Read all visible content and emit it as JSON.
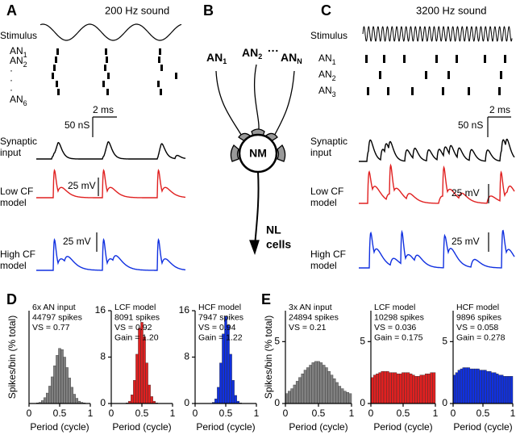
{
  "panel_a": {
    "letter": "A",
    "title": "200 Hz sound",
    "stimulus": "Stimulus",
    "an_rows": [
      {
        "text": "AN",
        "sub": "1"
      },
      {
        "text": "AN",
        "sub": "2"
      },
      "·",
      "·",
      "·",
      {
        "text": "AN",
        "sub": "6"
      }
    ],
    "scale_time": "2 ms",
    "scale_syn": "50 nS",
    "synaptic_input": [
      "Synaptic",
      "input"
    ],
    "low_cf": [
      "Low CF",
      "model"
    ],
    "low_cf_scale": "25 mV",
    "high_cf": [
      "High CF",
      "model"
    ],
    "high_cf_scale": "25 mV"
  },
  "panel_b": {
    "letter": "B",
    "inputs": [
      {
        "text": "AN",
        "sub": "1"
      },
      {
        "text": "AN",
        "sub": "2"
      },
      "···",
      {
        "text": "AN",
        "sub": "N"
      }
    ],
    "nucleus": "NM",
    "target": [
      "NL",
      "cells"
    ]
  },
  "panel_c": {
    "letter": "C",
    "title": "3200 Hz sound",
    "stimulus": "Stimulus",
    "an_rows": [
      {
        "text": "AN",
        "sub": "1"
      },
      {
        "text": "AN",
        "sub": "2"
      },
      {
        "text": "AN",
        "sub": "3"
      }
    ],
    "scale_time": "2 ms",
    "scale_syn": "50 nS",
    "synaptic_input": [
      "Synaptic",
      "input"
    ],
    "low_cf": [
      "Low CF",
      "model"
    ],
    "low_cf_scale": "25 mV",
    "high_cf": [
      "High CF",
      "model"
    ],
    "high_cf_scale": "25 mV"
  },
  "panel_d": {
    "letter": "D"
  },
  "panel_e": {
    "letter": "E"
  },
  "chart_data": [
    {
      "type": "histogram",
      "title_lines": [
        "6x AN input",
        "44797 spikes",
        "VS = 0.77"
      ],
      "ylabel": "Spikes/bin (% total)",
      "xlabel": "Period (cycle)",
      "color": "#808080",
      "bins": [
        0,
        0.04,
        0.08,
        0.12,
        0.16,
        0.2,
        0.24,
        0.28,
        0.32,
        0.36,
        0.4,
        0.44,
        0.48,
        0.52,
        0.56,
        0.6,
        0.64,
        0.68,
        0.72,
        0.76,
        0.8,
        0.84,
        0.88,
        0.92,
        0.96,
        1
      ],
      "values": [
        0,
        0,
        0,
        0.1,
        0.2,
        0.5,
        1,
        1.8,
        3,
        4.6,
        6.5,
        8.3,
        9.5,
        9.3,
        8,
        6.2,
        4.4,
        2.8,
        1.6,
        0.9,
        0.4,
        0.2,
        0.1,
        0,
        0
      ],
      "xlim": [
        0,
        1
      ],
      "xticks": [
        0,
        0.5,
        1
      ],
      "ylim": [
        0,
        16
      ],
      "yticks": []
    },
    {
      "type": "histogram",
      "title_lines": [
        "LCF model",
        "8091 spikes",
        "VS = 0.92",
        "Gain = 1.20"
      ],
      "xlabel": "Period (cycle)",
      "color": "#e02020",
      "bins": [
        0,
        0.04,
        0.08,
        0.12,
        0.16,
        0.2,
        0.24,
        0.28,
        0.32,
        0.36,
        0.4,
        0.44,
        0.48,
        0.52,
        0.56,
        0.6,
        0.64,
        0.68,
        0.72,
        0.76,
        0.8,
        0.84,
        0.88,
        0.92,
        0.96,
        1
      ],
      "values": [
        0,
        0,
        0,
        0,
        0,
        0,
        0.1,
        0.4,
        1.5,
        4,
        8.5,
        13,
        14,
        11.5,
        7,
        3.2,
        1.2,
        0.4,
        0.1,
        0,
        0,
        0,
        0,
        0,
        0
      ],
      "xlim": [
        0,
        1
      ],
      "xticks": [
        0,
        0.5,
        1
      ],
      "ylim": [
        0,
        16
      ],
      "yticks": [
        0,
        8,
        16
      ]
    },
    {
      "type": "histogram",
      "title_lines": [
        "HCF model",
        "7947 spikes",
        "VS = 0.94",
        "Gain = 1.22"
      ],
      "xlabel": "Period (cycle)",
      "color": "#1030e0",
      "bins": [
        0,
        0.04,
        0.08,
        0.12,
        0.16,
        0.2,
        0.24,
        0.28,
        0.32,
        0.36,
        0.4,
        0.44,
        0.48,
        0.52,
        0.56,
        0.6,
        0.64,
        0.68,
        0.72,
        0.76,
        0.8,
        0.84,
        0.88,
        0.92,
        0.96,
        1
      ],
      "values": [
        0,
        0,
        0,
        0,
        0,
        0,
        0,
        0.2,
        0.8,
        2.8,
        7,
        12,
        15,
        13.5,
        8.5,
        4,
        1.4,
        0.4,
        0.1,
        0,
        0,
        0,
        0,
        0,
        0
      ],
      "xlim": [
        0,
        1
      ],
      "xticks": [
        0,
        0.5,
        1
      ],
      "ylim": [
        0,
        16
      ],
      "yticks": [
        0,
        8,
        16
      ]
    },
    {
      "type": "histogram",
      "title_lines": [
        "3x AN input",
        "24894 spikes",
        "VS = 0.21"
      ],
      "ylabel": "Spikes/bin (% total)",
      "xlabel": "Period (cycle)",
      "color": "#808080",
      "bins": [
        0,
        0.04,
        0.08,
        0.12,
        0.16,
        0.2,
        0.24,
        0.28,
        0.32,
        0.36,
        0.4,
        0.44,
        0.48,
        0.52,
        0.56,
        0.6,
        0.64,
        0.68,
        0.72,
        0.76,
        0.8,
        0.84,
        0.88,
        0.92,
        0.96,
        1
      ],
      "values": [
        0.8,
        1,
        1.2,
        1.5,
        1.8,
        2.1,
        2.4,
        2.7,
        2.9,
        3.1,
        3.3,
        3.4,
        3.4,
        3.3,
        3.1,
        2.9,
        2.6,
        2.3,
        2,
        1.7,
        1.4,
        1.2,
        1,
        0.9,
        0.8
      ],
      "xlim": [
        0,
        1
      ],
      "xticks": [
        0,
        0.5,
        1
      ],
      "ylim": [
        0,
        7.5
      ],
      "yticks": [
        0,
        5
      ]
    },
    {
      "type": "histogram",
      "title_lines": [
        "LCF model",
        "10298 spikes",
        "VS = 0.036",
        "Gain = 0.175"
      ],
      "xlabel": "Period (cycle)",
      "color": "#e02020",
      "bins": [
        0,
        0.04,
        0.08,
        0.12,
        0.16,
        0.2,
        0.24,
        0.28,
        0.32,
        0.36,
        0.4,
        0.44,
        0.48,
        0.52,
        0.56,
        0.6,
        0.64,
        0.68,
        0.72,
        0.76,
        0.8,
        0.84,
        0.88,
        0.92,
        0.96,
        1
      ],
      "values": [
        2.1,
        2.3,
        2.4,
        2.5,
        2.6,
        2.6,
        2.6,
        2.5,
        2.5,
        2.5,
        2.4,
        2.4,
        2.5,
        2.5,
        2.5,
        2.4,
        2.3,
        2.2,
        2.2,
        2.3,
        2.3,
        2.4,
        2.4,
        2.5,
        2.5
      ],
      "xlim": [
        0,
        1
      ],
      "xticks": [
        0,
        0.5,
        1
      ],
      "ylim": [
        0,
        7.5
      ],
      "yticks": [
        0,
        5
      ]
    },
    {
      "type": "histogram",
      "title_lines": [
        "HCF model",
        "9896 spikes",
        "VS = 0.058",
        "Gain = 0.278"
      ],
      "xlabel": "Period (cycle)",
      "color": "#1030e0",
      "bins": [
        0,
        0.04,
        0.08,
        0.12,
        0.16,
        0.2,
        0.24,
        0.28,
        0.32,
        0.36,
        0.4,
        0.44,
        0.48,
        0.52,
        0.56,
        0.6,
        0.64,
        0.68,
        0.72,
        0.76,
        0.8,
        0.84,
        0.88,
        0.92,
        0.96,
        1
      ],
      "values": [
        2.3,
        2.5,
        2.7,
        2.8,
        2.9,
        2.9,
        2.9,
        2.8,
        2.8,
        2.8,
        2.8,
        2.7,
        2.7,
        2.7,
        2.6,
        2.6,
        2.5,
        2.5,
        2.4,
        2.3,
        2.3,
        2.2,
        2.2,
        2.2,
        2.2
      ],
      "xlim": [
        0,
        1
      ],
      "xticks": [
        0,
        0.5,
        1
      ],
      "ylim": [
        0,
        7.5
      ],
      "yticks": [
        0,
        5
      ]
    }
  ]
}
